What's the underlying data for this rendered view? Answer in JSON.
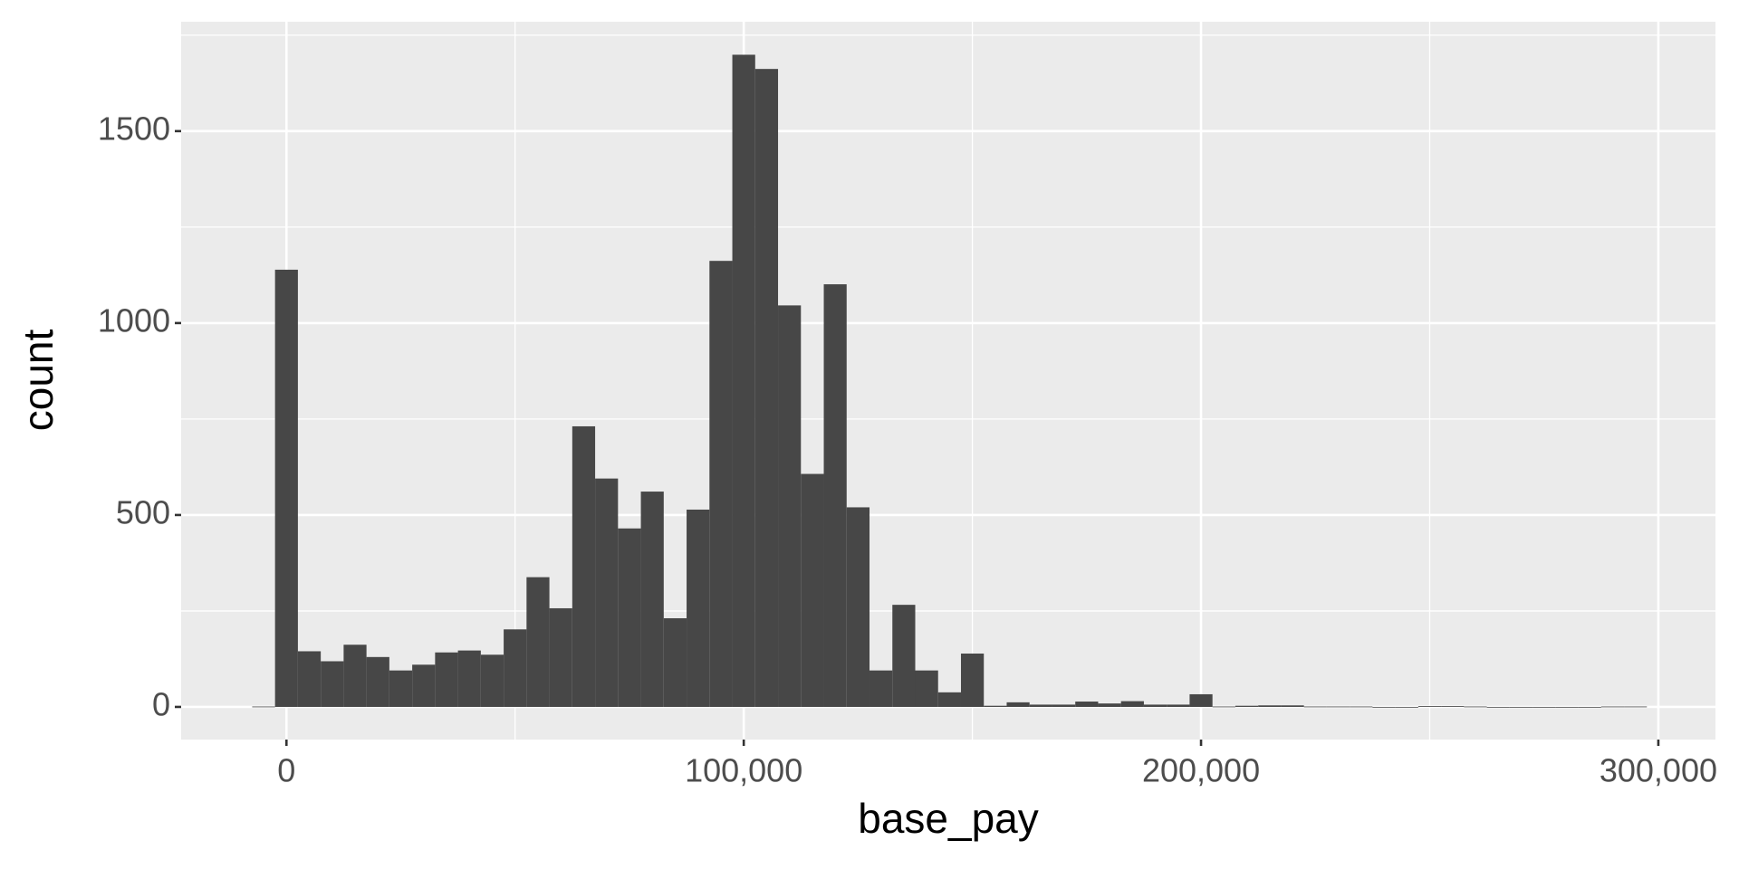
{
  "chart_data": {
    "type": "histogram",
    "x_label": "base_pay",
    "y_label": "count",
    "bins": [
      -7500,
      -2500,
      2500,
      7500,
      12500,
      17500,
      22500,
      27500,
      32500,
      37500,
      42500,
      47500,
      52500,
      57500,
      62500,
      67500,
      72500,
      77500,
      82500,
      87500,
      92500,
      97500,
      102500,
      107500,
      112500,
      117500,
      122500,
      127500,
      132500,
      137500,
      142500,
      147500,
      152500,
      157500,
      162500,
      167500,
      172500,
      177500,
      182500,
      187500,
      192500,
      197500,
      202500,
      207500,
      212500,
      217500,
      222500,
      227500,
      232500,
      237500,
      242500,
      247500,
      252500,
      257500,
      262500,
      267500,
      272500,
      277500,
      282500,
      287500,
      292500,
      297500
    ],
    "values": [
      1,
      1139,
      145,
      119,
      162,
      130,
      95,
      110,
      142,
      147,
      136,
      202,
      338,
      257,
      731,
      595,
      465,
      561,
      231,
      514,
      1162,
      1699,
      1662,
      1046,
      607,
      1101,
      520,
      95,
      266,
      95,
      38,
      139,
      3,
      12,
      6,
      6,
      14,
      9,
      15,
      6,
      6,
      33,
      1,
      3,
      4,
      4,
      1,
      1,
      1,
      0,
      0,
      2,
      2,
      1,
      0,
      0,
      0,
      0,
      0,
      1,
      1
    ],
    "color": "#474747",
    "xlim": [
      -23030,
      312490
    ],
    "xticks": [
      0,
      {
        "value": 100000,
        "label": "100,000"
      },
      {
        "value": 200000,
        "label": "200,000"
      },
      {
        "value": 300000,
        "label": "300,000"
      }
    ],
    "ylim": [
      -85,
      1785
    ],
    "yticks": [
      0,
      500,
      1000,
      1500
    ],
    "grid": true
  }
}
